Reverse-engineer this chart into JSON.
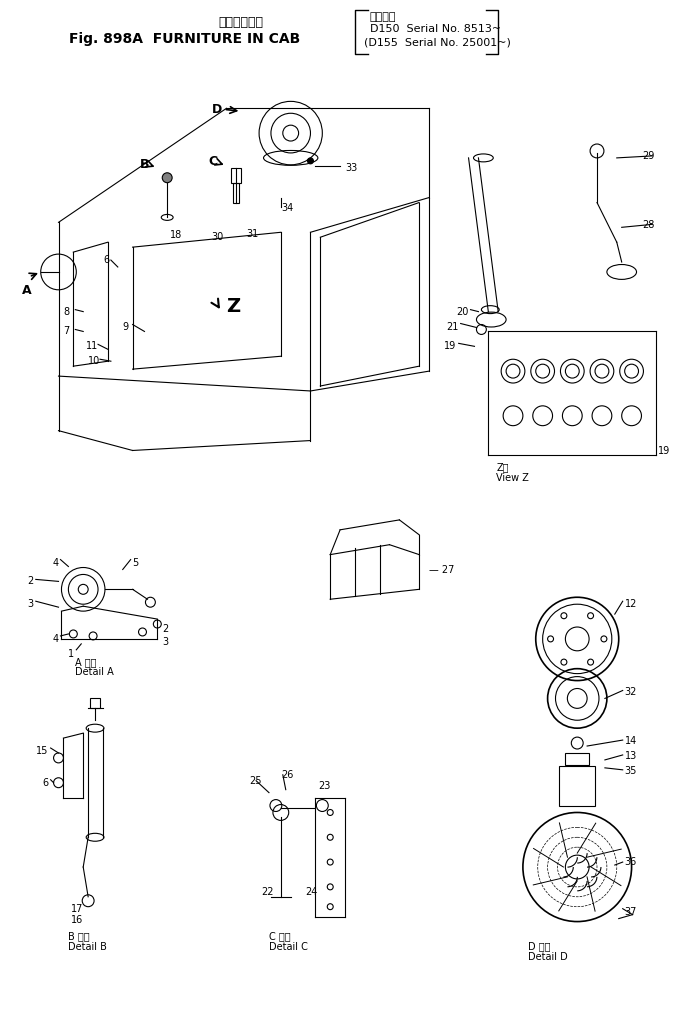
{
  "title_line1": "キャブ付属品",
  "title_line2": "Fig. 898A  FURNITURE IN CAB",
  "title_right1": "適用号機",
  "title_right2": "D150  Serial No. 8513～",
  "title_right3": "(D155  Serial No. 25001～)",
  "bg_color": "#ffffff",
  "line_color": "#000000",
  "font_size_title": 11,
  "font_size_label": 7.5,
  "fig_width": 6.98,
  "fig_height": 10.15,
  "dpi": 100
}
